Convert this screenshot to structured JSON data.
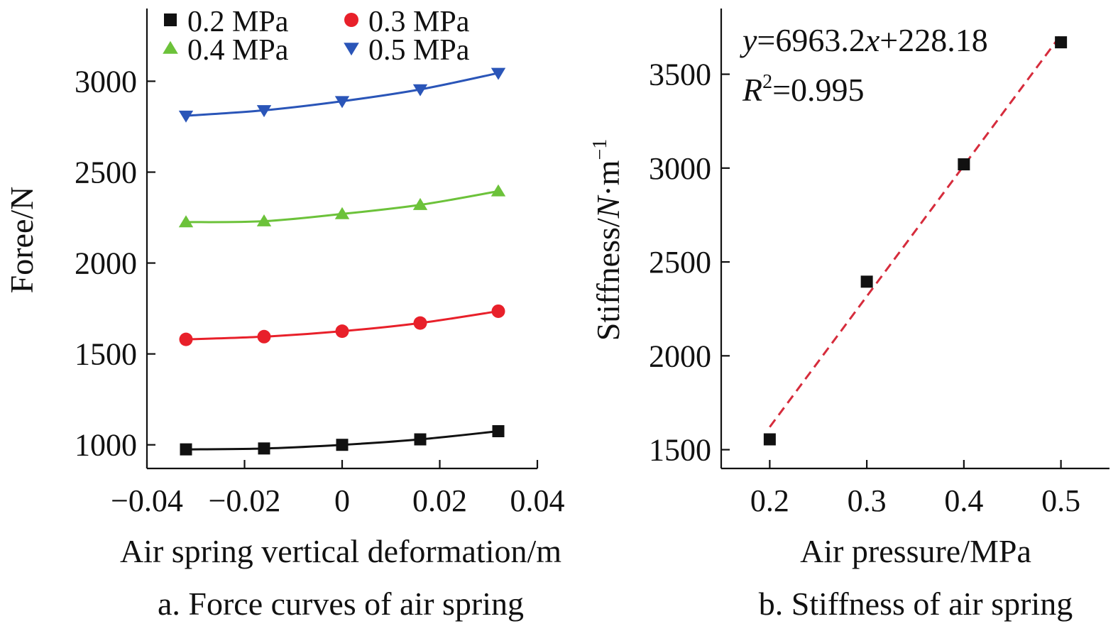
{
  "chart_data": [
    {
      "type": "line",
      "caption": "a. Force curves of air spring",
      "xlabel": "Air spring vertical deformation/m",
      "ylabel": "Foree/N",
      "xlim": [
        -0.04,
        0.04
      ],
      "ylim": [
        870,
        3400
      ],
      "xticks": [
        -0.04,
        -0.02,
        0,
        0.02,
        0.04
      ],
      "xtick_labels": [
        "−0.04",
        "−0.02",
        "0",
        "0.02",
        "0.04"
      ],
      "yticks": [
        1000,
        1500,
        2000,
        2500,
        3000
      ],
      "ytick_labels": [
        "1000",
        "1500",
        "2000",
        "2500",
        "3000"
      ],
      "legend_position": "top",
      "x": [
        -0.032,
        -0.016,
        0,
        0.016,
        0.032
      ],
      "series": [
        {
          "name": "0.2 MPa",
          "marker": "square",
          "color": "#111111",
          "values": [
            975,
            980,
            1000,
            1030,
            1075
          ]
        },
        {
          "name": "0.3 MPa",
          "marker": "circle",
          "color": "#e8202a",
          "values": [
            1580,
            1595,
            1625,
            1670,
            1735
          ]
        },
        {
          "name": "0.4 MPa",
          "marker": "triangle-up",
          "color": "#6cc23a",
          "values": [
            2225,
            2230,
            2270,
            2320,
            2395
          ]
        },
        {
          "name": "0.5 MPa",
          "marker": "triangle-down",
          "color": "#2a55b8",
          "values": [
            2810,
            2840,
            2890,
            2955,
            3045
          ]
        }
      ]
    },
    {
      "type": "scatter",
      "caption": "b. Stiffness of air spring",
      "xlabel": "Air pressure/MPa",
      "ylabel_prefix": "Stiffness/",
      "ylabel_italic": "N",
      "ylabel_suffix": "·m",
      "ylabel_sup": "−1",
      "xlim": [
        0.15,
        0.55
      ],
      "ylim": [
        1400,
        3850
      ],
      "xticks": [
        0.2,
        0.3,
        0.4,
        0.5
      ],
      "xtick_labels": [
        "0.2",
        "0.3",
        "0.4",
        "0.5"
      ],
      "yticks": [
        1500,
        2000,
        2500,
        3000,
        3500
      ],
      "ytick_labels": [
        "1500",
        "2000",
        "2500",
        "3000",
        "3500"
      ],
      "points": [
        {
          "x": 0.2,
          "y": 1555
        },
        {
          "x": 0.3,
          "y": 2395
        },
        {
          "x": 0.4,
          "y": 3020
        },
        {
          "x": 0.5,
          "y": 3670
        }
      ],
      "fit": {
        "slope": 6963.2,
        "intercept": 228.18,
        "x_range": [
          0.2,
          0.5
        ],
        "color": "#d62c3c",
        "style": "dashed"
      },
      "equation": {
        "y": "y",
        "eq": "=6963.2",
        "x": "x",
        "rest": "+228.18"
      },
      "r2": {
        "r": "R",
        "sup": "2",
        "rest": "=0.995"
      },
      "marker_color": "#111111"
    }
  ]
}
